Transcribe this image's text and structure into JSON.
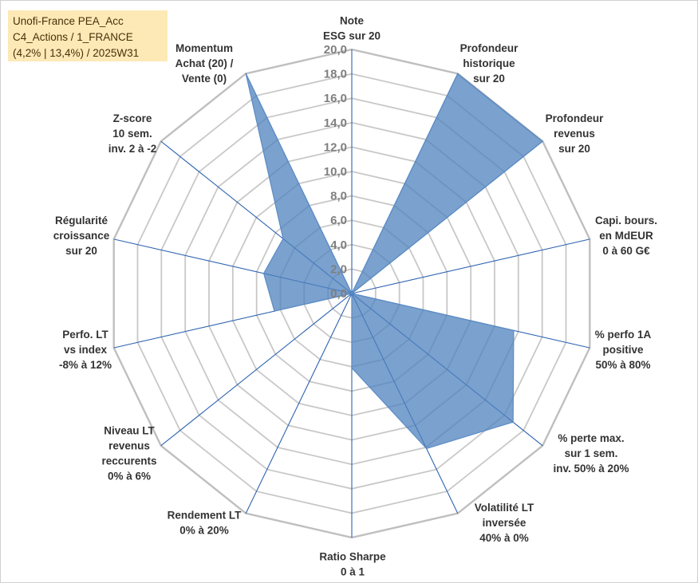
{
  "title_box": {
    "lines": [
      "Unofi-France PEA_Acc",
      "C4_Actions / 1_FRANCE",
      "(4,2% | 13,4%) / 2025W31"
    ]
  },
  "colors": {
    "fill": "#4f81bd",
    "fill_opacity": 0.75,
    "series_stroke": "#5b8cc4",
    "spoke": "#2e64b0",
    "grid": "#c8c8c8",
    "grid_outer": "#bfbfbf",
    "tick_text": "#7f7f7f",
    "axis_label_text": "#333333",
    "title_bg": "#fde9b6"
  },
  "chart_data": {
    "type": "radar",
    "range": [
      0,
      20
    ],
    "tick_step": 2,
    "tick_labels": [
      "0,0",
      "2,0",
      "4,0",
      "6,0",
      "8,0",
      "10,0",
      "12,0",
      "14,0",
      "16,0",
      "18,0",
      "20,0"
    ],
    "gridlines": true,
    "categories": [
      [
        "Note",
        "ESG sur 20"
      ],
      [
        "Profondeur",
        "historique",
        "sur 20"
      ],
      [
        "Profondeur",
        "revenus",
        "sur 20"
      ],
      [
        "Capi. bours.",
        "en MdEUR",
        "0 à 60 G€"
      ],
      [
        "% perfo 1A",
        "positive",
        "50% à 80%"
      ],
      [
        "% perte max.",
        "sur 1 sem.",
        "inv. 50% à 20%"
      ],
      [
        "Volatilité LT",
        "inversée",
        "40% à 0%"
      ],
      [
        "Ratio Sharpe",
        "0 à 1"
      ],
      [
        "Rendement LT",
        "0% à 20%"
      ],
      [
        "Niveau LT",
        "revenus",
        "reccurents",
        "0% à 6%"
      ],
      [
        "Perfo. LT",
        "vs index",
        "-8% à 12%"
      ],
      [
        "Régularité",
        "croissance",
        "sur 20"
      ],
      [
        "Z-score",
        "10 sem.",
        "inv. 2 à -2"
      ],
      [
        "Momentum",
        "Achat (20) /",
        "Vente (0)"
      ]
    ],
    "series": [
      {
        "values": [
          0,
          20,
          20,
          0,
          13.6,
          16.9,
          14.1,
          6.1,
          0,
          0,
          6.5,
          7.4,
          7.2,
          20
        ]
      }
    ]
  }
}
